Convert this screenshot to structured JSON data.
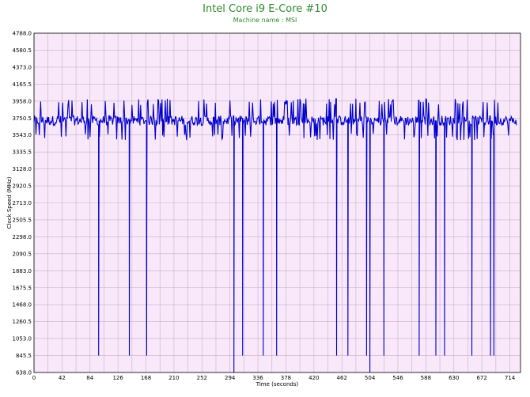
{
  "chart_data": {
    "type": "line",
    "title": "Intel Core i9 E-Core #10",
    "subtitle": "Machine name : MSI",
    "xlabel": "Time (seconds)",
    "ylabel": "Clock Speed (MHz)",
    "xlim": [
      0,
      730
    ],
    "ylim": [
      638.0,
      4788.0
    ],
    "x_ticks": [
      0,
      42,
      84,
      126,
      168,
      210,
      252,
      294,
      336,
      378,
      420,
      462,
      504,
      546,
      588,
      630,
      672,
      714
    ],
    "y_ticks": [
      "638.0",
      "845.5",
      "1053.0",
      "1260.5",
      "1468.0",
      "1675.5",
      "1883.0",
      "2090.5",
      "2298.0",
      "2505.5",
      "2713.0",
      "2920.5",
      "3128.0",
      "3335.5",
      "3543.0",
      "3750.5",
      "3958.0",
      "4165.5",
      "4373.0",
      "4580.5",
      "4788.0"
    ],
    "grid": true,
    "baseline_mhz": 3720,
    "baseline_range": [
      3480,
      3990
    ],
    "dips": [
      {
        "x": 97,
        "y": 845
      },
      {
        "x": 143,
        "y": 845
      },
      {
        "x": 169,
        "y": 845
      },
      {
        "x": 300,
        "y": 638
      },
      {
        "x": 313,
        "y": 845
      },
      {
        "x": 344,
        "y": 845
      },
      {
        "x": 364,
        "y": 845
      },
      {
        "x": 454,
        "y": 845
      },
      {
        "x": 471,
        "y": 845
      },
      {
        "x": 499,
        "y": 845
      },
      {
        "x": 504,
        "y": 638
      },
      {
        "x": 525,
        "y": 845
      },
      {
        "x": 578,
        "y": 845
      },
      {
        "x": 603,
        "y": 845
      },
      {
        "x": 616,
        "y": 845
      },
      {
        "x": 657,
        "y": 845
      },
      {
        "x": 685,
        "y": 845
      },
      {
        "x": 690,
        "y": 845
      }
    ],
    "series_color": "#0000cc",
    "plot_background": "#f8e8fa",
    "grid_color": "#c8b0c8"
  }
}
